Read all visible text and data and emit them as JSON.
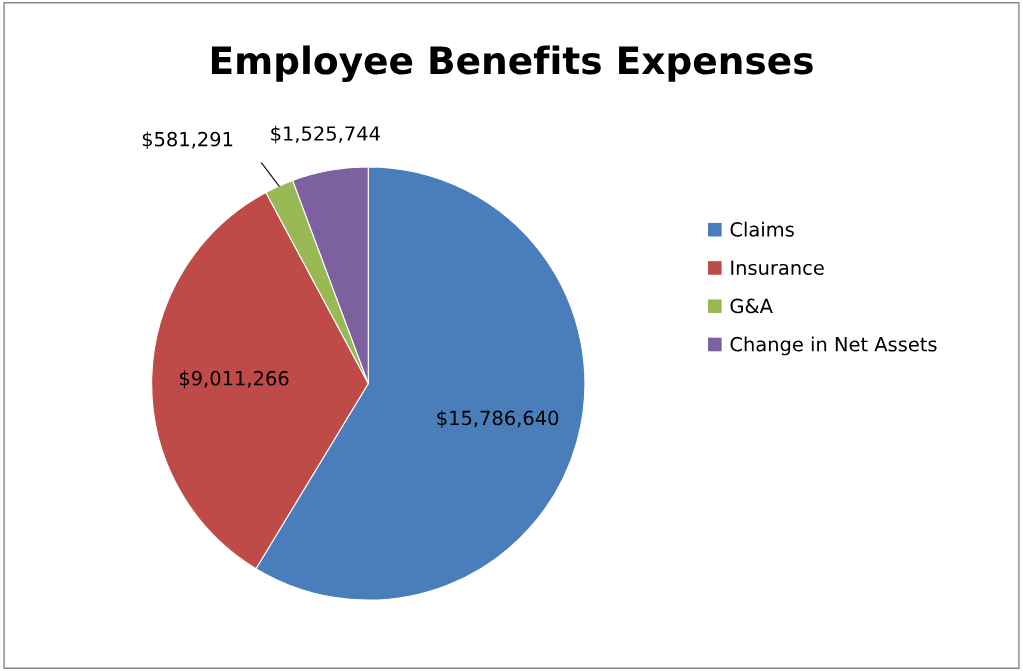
{
  "chart_data": {
    "type": "pie",
    "title": "Employee Benefits Expenses",
    "categories": [
      "Claims",
      "Insurance",
      "G&A",
      "Change in Net Assets"
    ],
    "values": [
      15786640,
      9011266,
      581291,
      1525744
    ],
    "colors": [
      "#4a7ebb",
      "#be4b48",
      "#98b954",
      "#7d60a0"
    ],
    "value_labels": [
      "$15,786,640",
      "$9,011,266",
      "$581,291",
      "$1,525,744"
    ],
    "legend": "right"
  }
}
